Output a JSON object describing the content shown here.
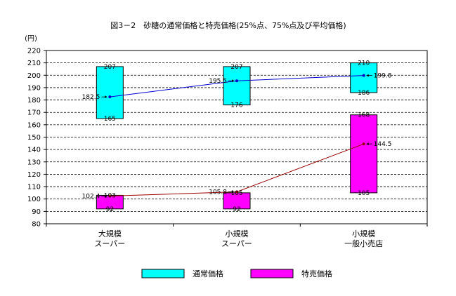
{
  "chart_data": {
    "type": "bar",
    "title": "図3－2　砂糖の通常価格と特売価格(25%点、75%点及び平均価格)",
    "ylabel": "(円)",
    "ylim": [
      80,
      220
    ],
    "ytick_step": 10,
    "grid": true,
    "legend_position": "bottom",
    "categories": [
      [
        "大規模",
        "スーパー"
      ],
      [
        "小規模",
        "スーパー"
      ],
      [
        "小規模",
        "一般小売店"
      ]
    ],
    "series": [
      {
        "name": "通常価格",
        "color": "#00ffff",
        "line_color": "#0000cc",
        "q25": [
          165,
          176,
          186
        ],
        "q75": [
          207,
          207,
          210
        ],
        "mean": [
          182.5,
          195.5,
          199.8
        ],
        "q25_labels": [
          "165",
          "176",
          "186"
        ],
        "q75_labels": [
          "207",
          "207",
          "210"
        ],
        "mean_labels": [
          "182.5",
          "195.5",
          "199.8"
        ]
      },
      {
        "name": "特売価格",
        "color": "#ff00ff",
        "line_color": "#990000",
        "q25": [
          92,
          92,
          105
        ],
        "q75": [
          103,
          105,
          168
        ],
        "mean": [
          102.4,
          105.8,
          144.5
        ],
        "q25_labels": [
          "92",
          "92",
          "105"
        ],
        "q75_labels": [
          "103",
          "105",
          "168"
        ],
        "mean_labels": [
          "102.4",
          "105.8",
          "144.5"
        ]
      }
    ]
  }
}
